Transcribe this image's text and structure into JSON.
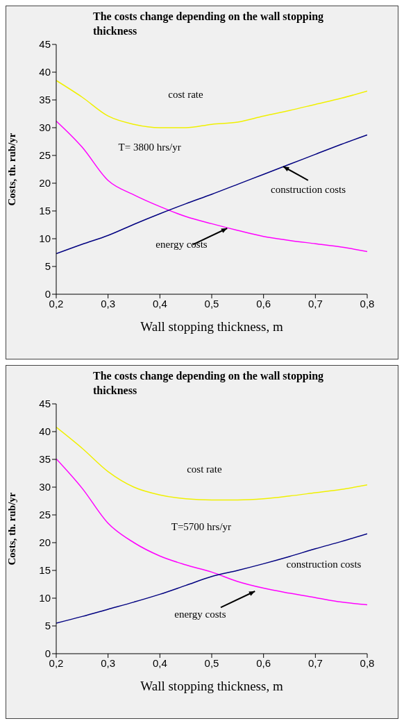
{
  "chart_data": [
    {
      "type": "line",
      "title": "The costs change depending on the wall stopping thickness",
      "xlabel": "Wall stopping thickness, m",
      "ylabel": "Costs, th. rub/yr",
      "x": [
        0.2,
        0.25,
        0.3,
        0.35,
        0.4,
        0.45,
        0.5,
        0.55,
        0.6,
        0.65,
        0.7,
        0.75,
        0.8
      ],
      "series": [
        {
          "name": "cost rate",
          "color": "#f0f000",
          "values": [
            38.5,
            35.5,
            32.1,
            30.6,
            30.0,
            30.0,
            30.6,
            31.0,
            32.1,
            33.1,
            34.2,
            35.3,
            36.6
          ]
        },
        {
          "name": "energy costs",
          "color": "#ff00ff",
          "values": [
            31.2,
            26.5,
            20.5,
            17.9,
            15.8,
            14.0,
            12.7,
            11.5,
            10.4,
            9.7,
            9.1,
            8.5,
            7.7
          ]
        },
        {
          "name": "construction costs",
          "color": "#000080",
          "values": [
            7.3,
            9.0,
            10.6,
            12.6,
            14.5,
            16.3,
            18.0,
            19.8,
            21.6,
            23.4,
            25.2,
            27.0,
            28.7
          ]
        }
      ],
      "annotations": [
        "T= 3800 hrs/yr"
      ],
      "xlim": [
        0.2,
        0.8
      ],
      "xticks": [
        {
          "value": 0.2,
          "label": "0,2"
        },
        {
          "value": 0.3,
          "label": "0,3"
        },
        {
          "value": 0.4,
          "label": "0,4"
        },
        {
          "value": 0.5,
          "label": "0,5"
        },
        {
          "value": 0.6,
          "label": "0,6"
        },
        {
          "value": 0.7,
          "label": "0,7"
        },
        {
          "value": 0.8,
          "label": "0,8"
        }
      ],
      "ylim": [
        0,
        45
      ],
      "yticks": [
        0,
        5,
        10,
        15,
        20,
        25,
        30,
        35,
        40,
        45
      ],
      "grid": false,
      "legend": false,
      "marker": "none",
      "line_style": "solid"
    },
    {
      "type": "line",
      "title": "The costs change depending on the wall stopping thickness",
      "xlabel": "Wall stopping thickness, m",
      "ylabel": "Costs, th. rub/yr",
      "x": [
        0.2,
        0.25,
        0.3,
        0.35,
        0.4,
        0.45,
        0.5,
        0.55,
        0.6,
        0.65,
        0.7,
        0.75,
        0.8
      ],
      "series": [
        {
          "name": "cost rate",
          "color": "#f0f000",
          "values": [
            40.8,
            37.0,
            32.8,
            30.0,
            28.6,
            27.9,
            27.7,
            27.7,
            27.9,
            28.4,
            29.0,
            29.6,
            30.4
          ]
        },
        {
          "name": "energy costs",
          "color": "#ff00ff",
          "values": [
            35.1,
            29.8,
            23.5,
            20.0,
            17.6,
            16.0,
            14.7,
            13.0,
            11.8,
            10.9,
            10.1,
            9.3,
            8.8
          ]
        },
        {
          "name": "construction costs",
          "color": "#000080",
          "values": [
            5.5,
            6.7,
            8.0,
            9.3,
            10.7,
            12.3,
            13.9,
            15.0,
            16.2,
            17.5,
            18.9,
            20.2,
            21.6
          ]
        }
      ],
      "annotations": [
        "T=5700 hrs/yr"
      ],
      "xlim": [
        0.2,
        0.8
      ],
      "xticks": [
        {
          "value": 0.2,
          "label": "0,2"
        },
        {
          "value": 0.3,
          "label": "0,3"
        },
        {
          "value": 0.4,
          "label": "0,4"
        },
        {
          "value": 0.5,
          "label": "0,5"
        },
        {
          "value": 0.6,
          "label": "0,6"
        },
        {
          "value": 0.7,
          "label": "0,7"
        },
        {
          "value": 0.8,
          "label": "0,8"
        }
      ],
      "ylim": [
        0,
        45
      ],
      "yticks": [
        0,
        5,
        10,
        15,
        20,
        25,
        30,
        35,
        40,
        45
      ],
      "grid": false,
      "legend": false,
      "marker": "none",
      "line_style": "solid"
    }
  ]
}
